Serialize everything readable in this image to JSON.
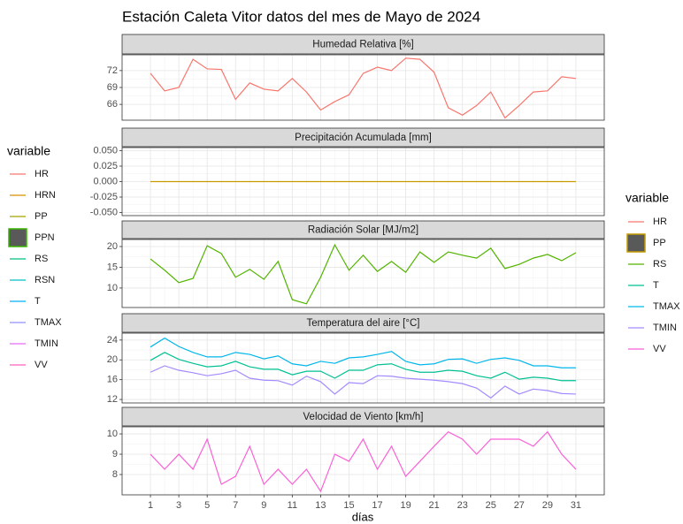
{
  "title": "Estación Caleta Vitor datos del mes de Mayo de 2024",
  "xlabel": "días",
  "x": [
    1,
    2,
    3,
    4,
    5,
    6,
    7,
    8,
    9,
    10,
    11,
    12,
    13,
    14,
    15,
    16,
    17,
    18,
    19,
    20,
    21,
    22,
    23,
    24,
    25,
    26,
    27,
    28,
    29,
    30,
    31
  ],
  "xlim": [
    -1,
    33
  ],
  "xticks": [
    1,
    3,
    5,
    7,
    9,
    11,
    13,
    15,
    17,
    19,
    21,
    23,
    25,
    27,
    29,
    31
  ],
  "legends": [
    {
      "title": "variable",
      "entries": [
        {
          "label": "HR",
          "color": "#F8766D"
        },
        {
          "label": "HRN",
          "color": "#D89000"
        },
        {
          "label": "PP",
          "color": "#A3A500"
        },
        {
          "label": "PPN",
          "color": "#39B600",
          "shape": "square",
          "fill": "#595959"
        },
        {
          "label": "RS",
          "color": "#00BF7D"
        },
        {
          "label": "RSN",
          "color": "#00BFC4"
        },
        {
          "label": "T",
          "color": "#00B0F6"
        },
        {
          "label": "TMAX",
          "color": "#9590FF"
        },
        {
          "label": "TMIN",
          "color": "#E76BF3"
        },
        {
          "label": "VV",
          "color": "#FF62BC"
        }
      ]
    },
    {
      "title": "variable",
      "entries": [
        {
          "label": "HR",
          "color": "#F8766D"
        },
        {
          "label": "PP",
          "color": "#C49A00",
          "shape": "square",
          "fill": "#595959"
        },
        {
          "label": "RS",
          "color": "#53B400"
        },
        {
          "label": "T",
          "color": "#00C094"
        },
        {
          "label": "TMAX",
          "color": "#00B6EB"
        },
        {
          "label": "TMIN",
          "color": "#A58AFF"
        },
        {
          "label": "VV",
          "color": "#FB61D7"
        }
      ]
    }
  ],
  "chart_data": [
    {
      "type": "line",
      "title": "Humedad Relativa [%]",
      "ylim": [
        63.2,
        74.8
      ],
      "yticks": [
        66,
        69,
        72
      ],
      "series": [
        {
          "name": "HR",
          "color": "#F8766D",
          "values": [
            71.5,
            68.4,
            69,
            74.0,
            72.3,
            72.2,
            66.9,
            69.8,
            68.7,
            68.4,
            70.6,
            68.2,
            65.0,
            66.5,
            67.7,
            71.5,
            72.6,
            72,
            74.2,
            74.0,
            71.7,
            65.4,
            64.1,
            65.8,
            68.2,
            63.6,
            65.8,
            68.2,
            68.4,
            70.9,
            70.6
          ]
        }
      ]
    },
    {
      "type": "line",
      "title": "Precipitación Acumulada [mm]",
      "ylim": [
        -0.055,
        0.055
      ],
      "yticks": [
        {
          "value": -0.05,
          "label": "-0.050"
        },
        {
          "value": -0.025,
          "label": "-0.025"
        },
        {
          "value": 0,
          "label": "0.000"
        },
        {
          "value": 0.025,
          "label": "0.025"
        },
        {
          "value": 0.05,
          "label": "0.050"
        }
      ],
      "series": [
        {
          "name": "PP",
          "color": "#C49A00",
          "values": [
            0,
            0,
            0,
            0,
            0,
            0,
            0,
            0,
            0,
            0,
            0,
            0,
            0,
            0,
            0,
            0,
            0,
            0,
            0,
            0,
            0,
            0,
            0,
            0,
            0,
            0,
            0,
            0,
            0,
            0,
            0
          ]
        }
      ]
    },
    {
      "type": "line",
      "title": "Radiación Solar [MJ/m2]",
      "ylim": [
        5.3,
        21.7
      ],
      "yticks": [
        10,
        15,
        20
      ],
      "series": [
        {
          "name": "RS",
          "color": "#53B400",
          "values": [
            17.0,
            14.3,
            11.3,
            12.3,
            20.2,
            18.3,
            12.6,
            14.5,
            12.1,
            16.4,
            7.2,
            6.2,
            12.6,
            20.4,
            14.3,
            17.9,
            14.0,
            16.4,
            13.8,
            18.7,
            16.2,
            18.7,
            17.9,
            17.2,
            19.6,
            14.7,
            15.7,
            17.2,
            18.1,
            16.6,
            18.5
          ]
        }
      ]
    },
    {
      "type": "line",
      "title": "Temperatura del aire [°C]",
      "ylim": [
        11.3,
        25.4
      ],
      "yticks": [
        12,
        16,
        20,
        24
      ],
      "series": [
        {
          "name": "T",
          "color": "#00C094",
          "values": [
            19.9,
            21.5,
            20.1,
            19.3,
            18.6,
            18.8,
            19.7,
            18.6,
            18.1,
            18.1,
            17.0,
            17.7,
            17.7,
            16.3,
            17.9,
            17.9,
            19.0,
            19.2,
            18.1,
            17.5,
            17.5,
            17.9,
            17.7,
            16.8,
            16.3,
            17.5,
            16.1,
            16.5,
            16.3,
            15.8,
            15.8
          ]
        },
        {
          "name": "TMAX",
          "color": "#00B6EB",
          "values": [
            22.6,
            24.4,
            22.7,
            21.5,
            20.6,
            20.6,
            21.5,
            21.1,
            20.2,
            20.8,
            19.2,
            18.8,
            19.7,
            19.3,
            20.4,
            20.6,
            21.1,
            21.7,
            19.7,
            19.0,
            19.2,
            20.1,
            20.2,
            19.3,
            20.1,
            20.4,
            19.9,
            18.8,
            18.8,
            18.4,
            18.4
          ]
        },
        {
          "name": "TMIN",
          "color": "#A58AFF",
          "values": [
            17.5,
            18.8,
            17.9,
            17.4,
            16.8,
            17.2,
            17.9,
            16.3,
            15.9,
            15.8,
            14.9,
            16.7,
            15.6,
            13.1,
            15.4,
            15.2,
            16.8,
            16.7,
            16.3,
            16.1,
            15.9,
            15.6,
            15.2,
            14.3,
            12.3,
            14.7,
            13.1,
            14.1,
            13.8,
            13.2,
            13.1
          ]
        }
      ]
    },
    {
      "type": "line",
      "title": "Velocidad de Viento [km/h]",
      "ylim": [
        7.0,
        10.35
      ],
      "yticks": [
        8,
        9,
        10
      ],
      "series": [
        {
          "name": "VV",
          "color": "#FB61D7",
          "values": [
            9.0,
            8.26,
            9.0,
            8.26,
            9.74,
            7.52,
            7.91,
            9.39,
            7.52,
            8.26,
            7.52,
            8.26,
            7.17,
            9.0,
            8.65,
            9.74,
            8.26,
            9.39,
            7.91,
            8.65,
            9.39,
            10.1,
            9.74,
            9.0,
            9.74,
            9.74,
            9.74,
            9.39,
            10.1,
            9.0,
            8.26
          ]
        }
      ]
    }
  ]
}
